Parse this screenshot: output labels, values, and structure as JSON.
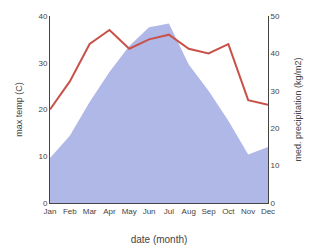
{
  "chart_data": {
    "type": "line",
    "xlabel": "date (month)",
    "ylabel": "max temp (C)",
    "y2label": "med. precipitation (kg/m2)",
    "categories": [
      "Jan",
      "Feb",
      "Mar",
      "Apr",
      "May",
      "Jun",
      "Jul",
      "Aug",
      "Sep",
      "Oct",
      "Nov",
      "Dec"
    ],
    "series": [
      {
        "type": "area",
        "axis": "y2",
        "color": "#b0b8e8",
        "values": [
          12,
          18,
          27,
          35,
          42,
          47,
          48,
          37,
          30,
          22,
          13,
          15
        ]
      },
      {
        "type": "line",
        "color": "#c8524a",
        "values": [
          20,
          26,
          34,
          37,
          33,
          35,
          36,
          33,
          32,
          34,
          22,
          21
        ]
      }
    ],
    "ylim": [
      0,
      40
    ],
    "yticks": [
      0,
      10,
      20,
      30,
      40
    ],
    "y2lim": [
      0,
      50
    ],
    "y2ticks": [
      0,
      10,
      20,
      30,
      40,
      50
    ],
    "grid": false
  }
}
